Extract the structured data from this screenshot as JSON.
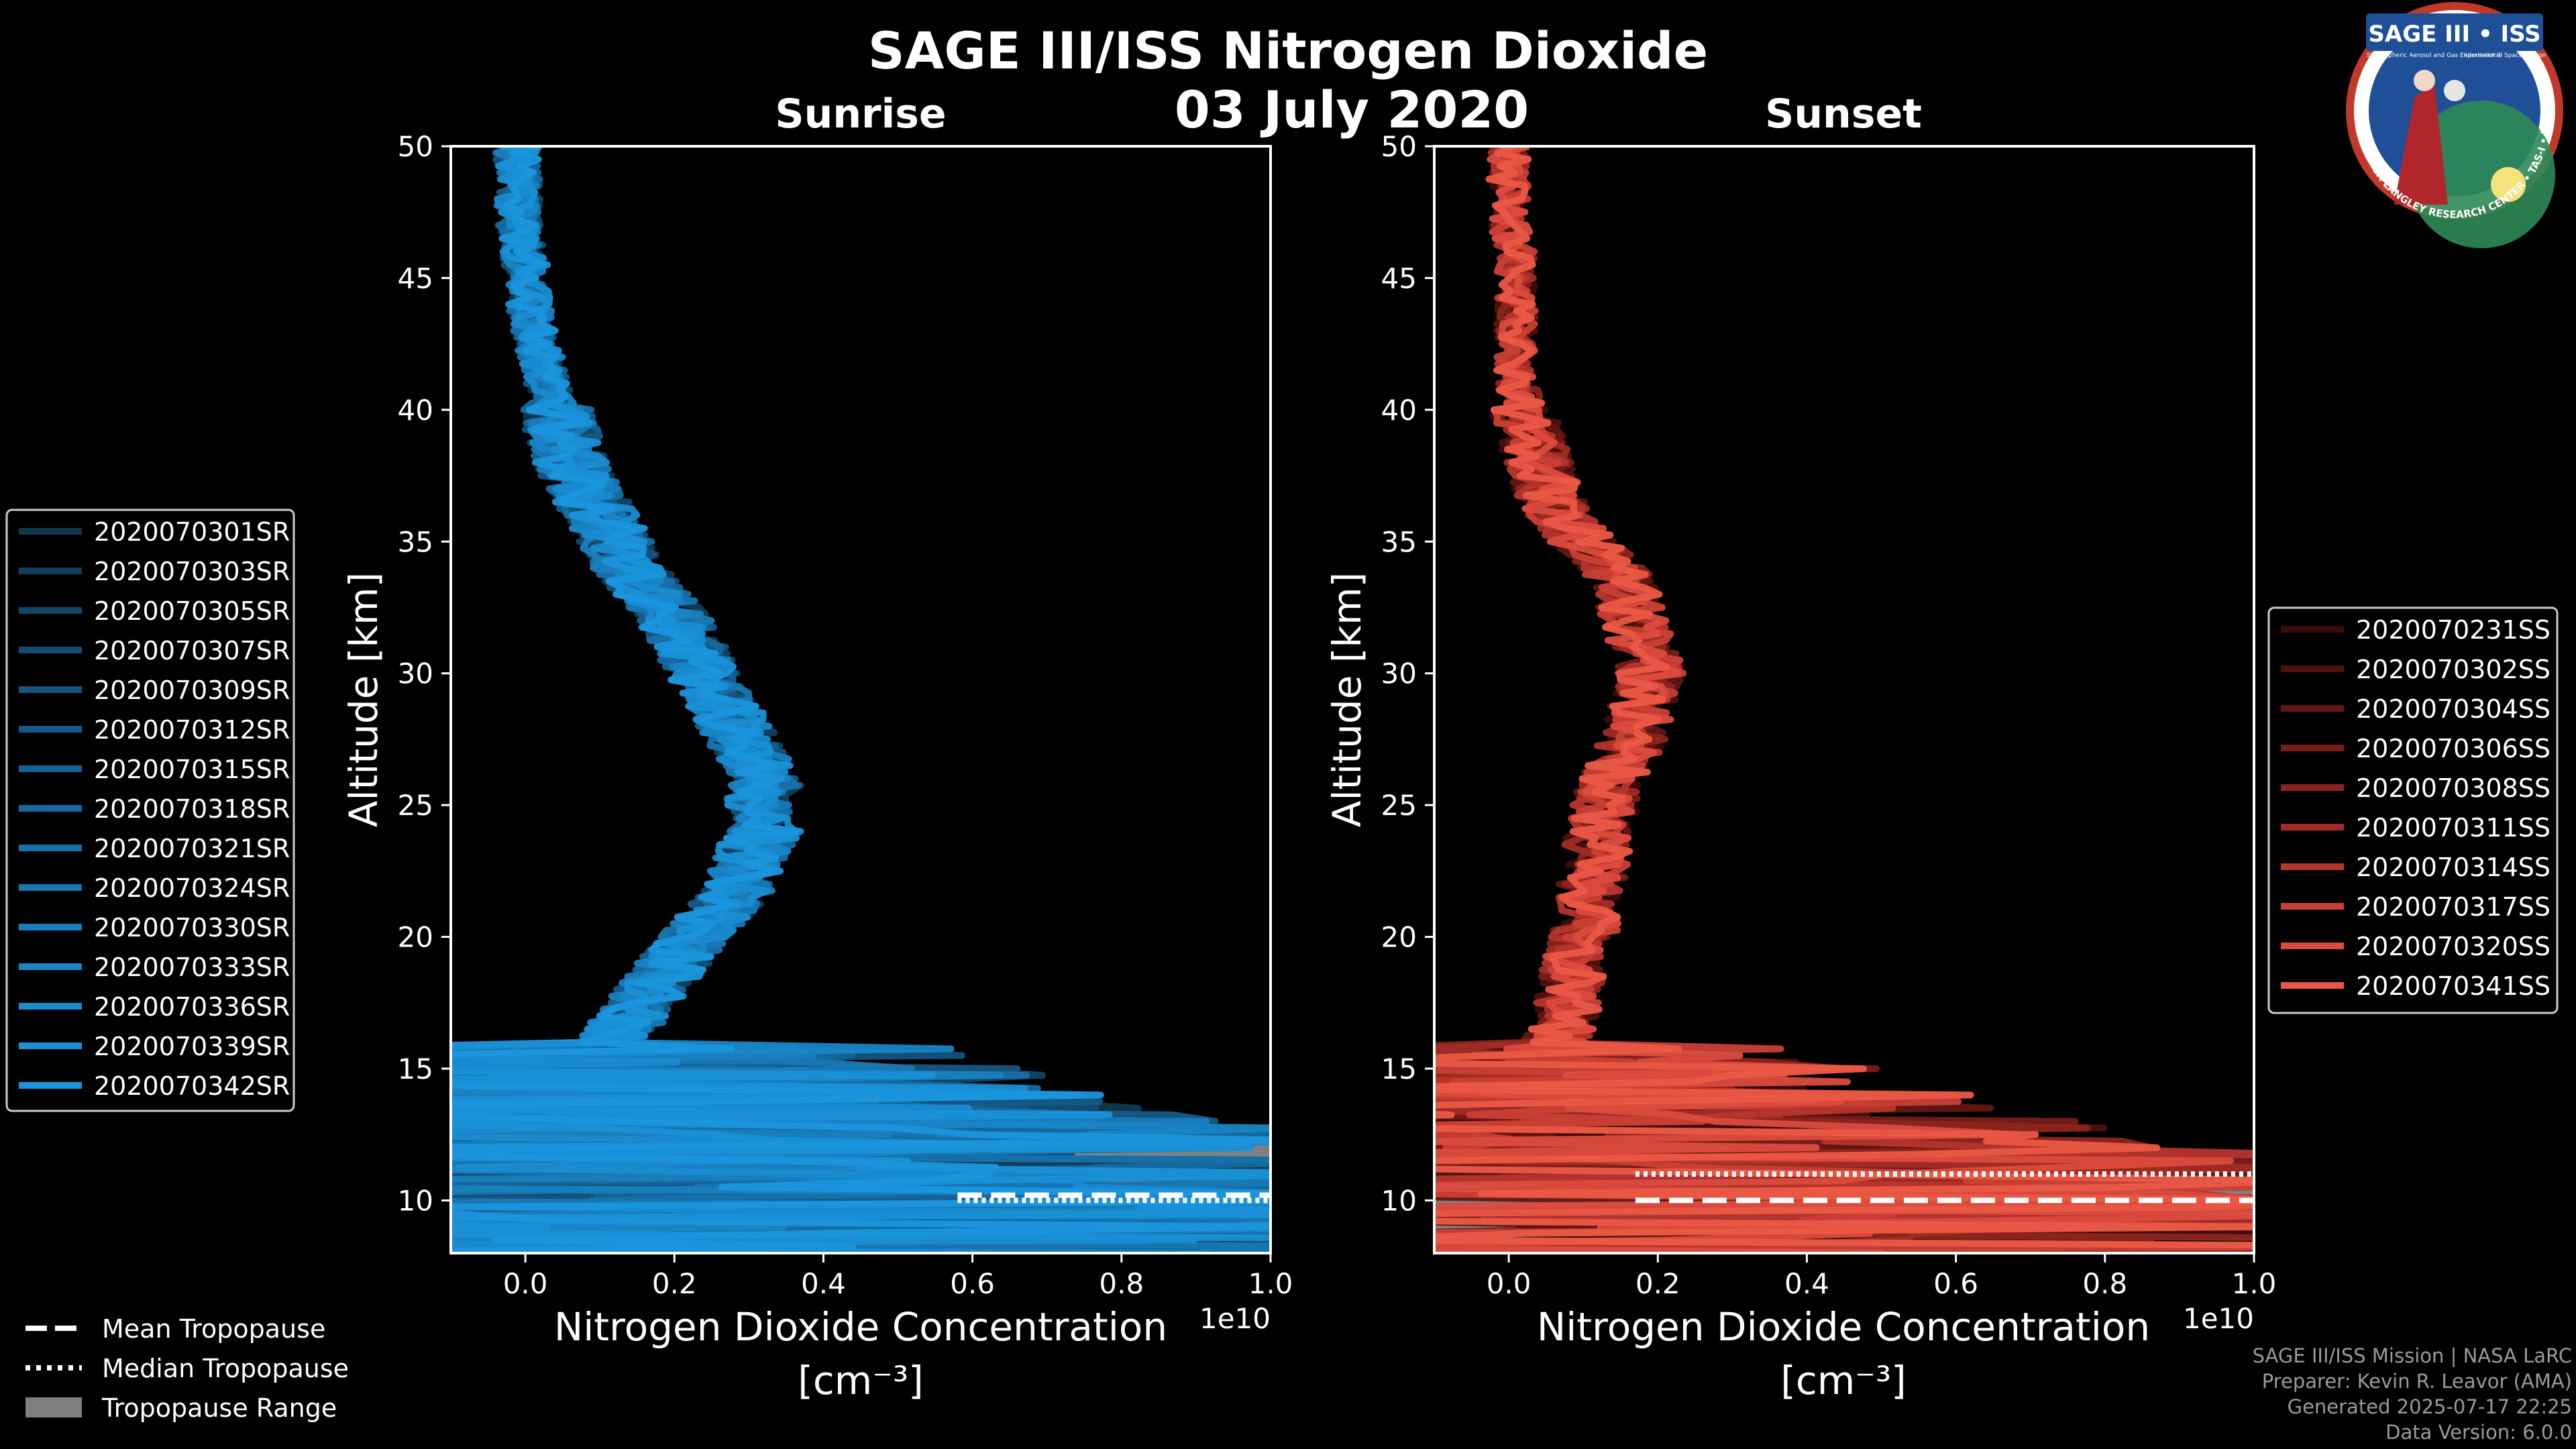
{
  "figure": {
    "title": "SAGE III/ISS Nitrogen Dioxide",
    "date": "03 July 2020",
    "logo": {
      "title": "SAGE III • ISS",
      "subtitle": "Stratospheric Aerosol and Gas Experiment III",
      "subtitle2": "International Space Station",
      "ring": "BALL • NASA LANGLEY RESEARCH CENTER • TAS-I • ESA"
    },
    "credits": [
      "SAGE III/ISS Mission | NASA LaRC",
      "Preparer: Kevin R. Leavor (AMA)",
      "Generated 2025-07-17 22:25",
      "Data Version: 6.0.0"
    ]
  },
  "colors": {
    "background": "#000000",
    "sunrise": "#1a93d9",
    "sunset": "#ec5a45",
    "tropopause_range": "#808080",
    "axes": "#ffffff"
  },
  "chart_data": [
    {
      "type": "line",
      "title": "Sunrise",
      "xlabel": "Nitrogen Dioxide Concentration",
      "xlabel_units": "[cm⁻³]",
      "ylabel": "Altitude [km]",
      "xlim": [
        -0.1,
        1.0
      ],
      "ylim": [
        8,
        50
      ],
      "x_offset_label": "1e10",
      "xticks": [
        0.0,
        0.2,
        0.4,
        0.6,
        0.8,
        1.0
      ],
      "xtick_labels": [
        "0.0",
        "0.2",
        "0.4",
        "0.6",
        "0.8",
        "1.0"
      ],
      "yticks": [
        10,
        15,
        20,
        25,
        30,
        35,
        40,
        45,
        50
      ],
      "ytick_labels": [
        "10",
        "15",
        "20",
        "25",
        "30",
        "35",
        "40",
        "45",
        "50"
      ],
      "legend_position": "left",
      "tropopause": {
        "range_km": [
          9.0,
          12.5
        ],
        "mean_km": 10.2,
        "median_km": 10.0
      },
      "mean_profile": {
        "altitude_km": [
          10,
          11,
          12,
          13,
          14,
          15,
          16,
          17,
          18,
          19,
          20,
          21,
          22,
          23,
          24,
          25,
          26,
          27,
          28,
          29,
          30,
          31,
          32,
          33,
          34,
          35,
          36,
          37,
          38,
          39,
          40,
          41,
          42,
          43,
          44,
          45,
          46,
          47,
          48,
          49,
          50
        ],
        "no2_1e10": [
          0.4,
          0.4,
          0.3,
          0.2,
          0.12,
          0.1,
          0.12,
          0.14,
          0.17,
          0.2,
          0.23,
          0.26,
          0.29,
          0.3,
          0.32,
          0.32,
          0.32,
          0.3,
          0.28,
          0.26,
          0.24,
          0.22,
          0.2,
          0.17,
          0.14,
          0.12,
          0.1,
          0.08,
          0.06,
          0.05,
          0.04,
          0.03,
          0.02,
          0.01,
          0.005,
          0.0,
          0.0,
          -0.01,
          -0.01,
          -0.01,
          -0.01
        ]
      },
      "series": [
        {
          "name": "2020070301SR",
          "color": "#10384f"
        },
        {
          "name": "2020070303SR",
          "color": "#113f5b"
        },
        {
          "name": "2020070305SR",
          "color": "#124667"
        },
        {
          "name": "2020070307SR",
          "color": "#134d73"
        },
        {
          "name": "2020070309SR",
          "color": "#14547e"
        },
        {
          "name": "2020070312SR",
          "color": "#155b89"
        },
        {
          "name": "2020070315SR",
          "color": "#166294"
        },
        {
          "name": "2020070318SR",
          "color": "#16699f"
        },
        {
          "name": "2020070321SR",
          "color": "#1770a9"
        },
        {
          "name": "2020070324SR",
          "color": "#1777b3"
        },
        {
          "name": "2020070330SR",
          "color": "#187ebd"
        },
        {
          "name": "2020070333SR",
          "color": "#1885c6"
        },
        {
          "name": "2020070336SR",
          "color": "#198bcf"
        },
        {
          "name": "2020070339SR",
          "color": "#1990d6"
        },
        {
          "name": "2020070342SR",
          "color": "#1a95dc"
        }
      ]
    },
    {
      "type": "line",
      "title": "Sunset",
      "xlabel": "Nitrogen Dioxide Concentration",
      "xlabel_units": "[cm⁻³]",
      "ylabel": "Altitude [km]",
      "xlim": [
        -0.1,
        1.0
      ],
      "ylim": [
        8,
        50
      ],
      "x_offset_label": "1e10",
      "xticks": [
        0.0,
        0.2,
        0.4,
        0.6,
        0.8,
        1.0
      ],
      "xtick_labels": [
        "0.0",
        "0.2",
        "0.4",
        "0.6",
        "0.8",
        "1.0"
      ],
      "yticks": [
        10,
        15,
        20,
        25,
        30,
        35,
        40,
        45,
        50
      ],
      "ytick_labels": [
        "10",
        "15",
        "20",
        "25",
        "30",
        "35",
        "40",
        "45",
        "50"
      ],
      "legend_position": "right",
      "tropopause": {
        "range_km": [
          8.5,
          11.5
        ],
        "mean_km": 10.0,
        "median_km": 11.0
      },
      "mean_profile": {
        "altitude_km": [
          10,
          11,
          12,
          13,
          14,
          15,
          16,
          17,
          18,
          19,
          20,
          21,
          22,
          23,
          24,
          25,
          26,
          27,
          28,
          29,
          30,
          31,
          32,
          33,
          34,
          35,
          36,
          37,
          38,
          39,
          40,
          41,
          42,
          43,
          44,
          45,
          46,
          47,
          48,
          49,
          50
        ],
        "no2_1e10": [
          0.5,
          0.45,
          0.3,
          0.15,
          0.1,
          0.06,
          0.06,
          0.08,
          0.08,
          0.09,
          0.1,
          0.11,
          0.11,
          0.12,
          0.12,
          0.13,
          0.14,
          0.16,
          0.17,
          0.18,
          0.19,
          0.18,
          0.17,
          0.16,
          0.14,
          0.1,
          0.07,
          0.05,
          0.04,
          0.03,
          0.02,
          0.01,
          0.01,
          0.01,
          0.01,
          0.01,
          0.01,
          0.0,
          0.0,
          0.0,
          0.0
        ]
      },
      "series": [
        {
          "name": "2020070231SS",
          "color": "#3a0c0a"
        },
        {
          "name": "2020070302SS",
          "color": "#4d110e"
        },
        {
          "name": "2020070304SS",
          "color": "#621713"
        },
        {
          "name": "2020070306SS",
          "color": "#771d18"
        },
        {
          "name": "2020070308SS",
          "color": "#8c241e"
        },
        {
          "name": "2020070311SS",
          "color": "#a12c25"
        },
        {
          "name": "2020070314SS",
          "color": "#b6352d"
        },
        {
          "name": "2020070317SS",
          "color": "#c93f35"
        },
        {
          "name": "2020070320SS",
          "color": "#db4b3e"
        },
        {
          "name": "2020070341SS",
          "color": "#ea5845"
        }
      ]
    }
  ],
  "shared_legend": {
    "items": [
      {
        "label": "Mean Tropopause",
        "style": "dashed"
      },
      {
        "label": "Median Tropopause",
        "style": "dotted"
      },
      {
        "label": "Tropopause Range",
        "style": "patch"
      }
    ]
  }
}
